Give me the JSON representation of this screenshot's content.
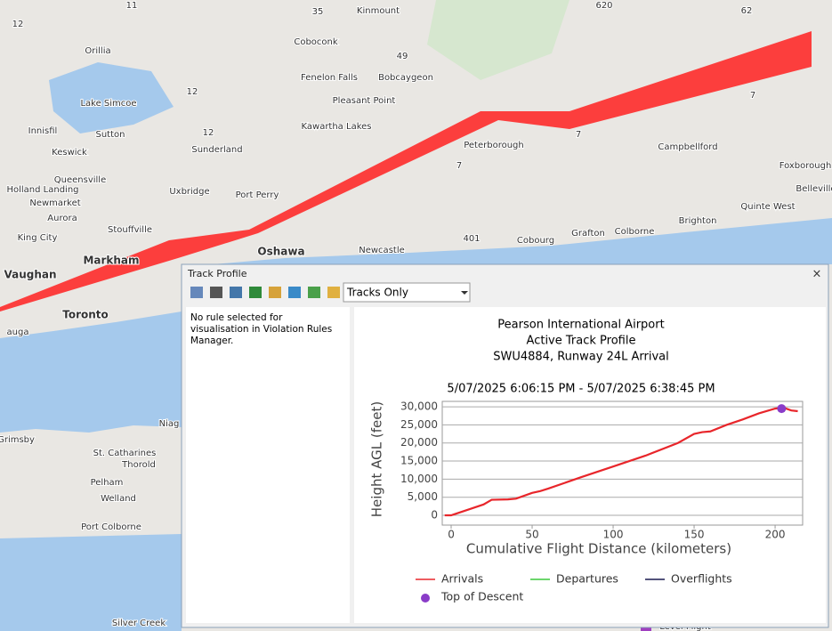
{
  "map": {
    "labels": [
      "11",
      "35",
      "Kinmount",
      "620",
      "62",
      "12",
      "Orillia",
      "Coboconk",
      "49",
      "Fenelon Falls",
      "Bobcaygeon",
      "12",
      "Lake Simcoe",
      "Pleasant Point",
      "7",
      "Innisfil",
      "Sutton",
      "12",
      "Kawartha Lakes",
      "7",
      "Campbellford",
      "Keswick",
      "Sunderland",
      "Peterborough",
      "7",
      "Foxborough",
      "Queensville",
      "Holland Landing",
      "Uxbridge",
      "Port Perry",
      "Belleville",
      "Newmarket",
      "Quinte West",
      "Aurora",
      "Stouffville",
      "Brighton",
      "Grafton",
      "Colborne",
      "King City",
      "401",
      "Newcastle",
      "Cobourg",
      "Oshawa",
      "Markham",
      "Vaughan",
      "Toronto",
      "auga",
      "Niag",
      "Grimsby",
      "St. Catharines",
      "Thorold",
      "Pelham",
      "Welland",
      "Port Colborne",
      "Silver Creek",
      "Level Flight"
    ]
  },
  "window": {
    "title": "Track Profile",
    "close": "×",
    "dropdown": "Tracks Only",
    "message_lines": [
      "No rule selected for",
      "visualisation in Violation Rules",
      "Manager."
    ]
  },
  "chart_data": {
    "type": "line",
    "title_lines": [
      "Pearson International Airport",
      "Active Track Profile",
      "SWU4884, Runway 24L Arrival"
    ],
    "subtitle": "5/07/2025 6:06:15 PM - 5/07/2025 6:38:45 PM",
    "xlabel": "Cumulative Flight Distance (kilometers)",
    "ylabel": "Height AGL (feet)",
    "xlim": [
      -5.5,
      217
    ],
    "ylim": [
      -2700,
      31500
    ],
    "xticks": [
      0,
      50,
      100,
      150,
      200
    ],
    "yticks": [
      0,
      {
        "value": 5000,
        "label": "5,000"
      },
      {
        "value": 10000,
        "label": "10,000"
      },
      {
        "value": 15000,
        "label": "15,000"
      },
      {
        "value": 20000,
        "label": "20,000"
      },
      {
        "value": 25000,
        "label": "25,000"
      },
      {
        "value": 30000,
        "label": "30,000"
      }
    ],
    "grid": true,
    "series": [
      {
        "name": "Arrivals",
        "color": "#e8262b",
        "x": [
          -4,
          0,
          10,
          20,
          25,
          35,
          40,
          50,
          55,
          60,
          80,
          100,
          120,
          140,
          150,
          155,
          160,
          170,
          180,
          190,
          200,
          205,
          210,
          214
        ],
        "values": [
          0,
          0,
          1500,
          3000,
          4300,
          4400,
          4600,
          6200,
          6700,
          7400,
          10500,
          13500,
          16500,
          20000,
          22500,
          23000,
          23200,
          25000,
          26500,
          28200,
          29500,
          29800,
          29000,
          28800
        ]
      },
      {
        "name": "Departures",
        "color": "#3cc83c",
        "x": [],
        "values": []
      },
      {
        "name": "Overflights",
        "color": "#1a1a50",
        "x": [],
        "values": []
      }
    ],
    "markers": [
      {
        "name": "Top of Descent",
        "color": "#8a3cc8",
        "x": 204,
        "y": 29500
      }
    ]
  }
}
